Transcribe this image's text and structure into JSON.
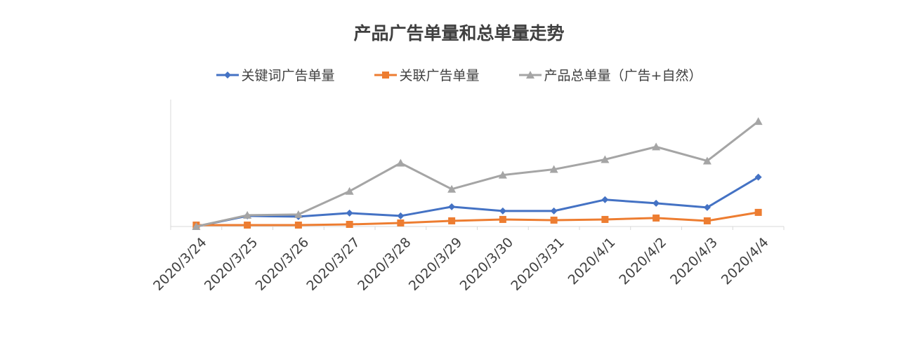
{
  "chart_data": {
    "type": "line",
    "title": "产品广告单量和总单量走势",
    "xlabel": "",
    "ylabel": "",
    "categories": [
      "2020/3/24",
      "2020/3/25",
      "2020/3/26",
      "2020/3/27",
      "2020/3/28",
      "2020/3/29",
      "2020/3/30",
      "2020/3/31",
      "2020/4/1",
      "2020/4/2",
      "2020/4/3",
      "2020/4/4"
    ],
    "series": [
      {
        "name": "关键词广告单量",
        "color": "#4472C4",
        "marker": "diamond",
        "values": [
          0,
          15,
          14,
          19,
          15,
          28,
          22,
          22,
          38,
          33,
          27,
          70
        ]
      },
      {
        "name": "关联广告单量",
        "color": "#ED7D31",
        "marker": "square",
        "values": [
          2,
          2,
          2,
          3,
          5,
          8,
          10,
          9,
          10,
          12,
          8,
          20
        ]
      },
      {
        "name": "产品总单量（广告+自然）",
        "color": "#A5A5A5",
        "marker": "triangle",
        "values": [
          0,
          16,
          17,
          50,
          90,
          53,
          73,
          81,
          95,
          113,
          93,
          149
        ]
      }
    ],
    "ylim": [
      0,
      180
    ],
    "y_axis_visible": false,
    "grid": false,
    "legend_position": "top"
  }
}
